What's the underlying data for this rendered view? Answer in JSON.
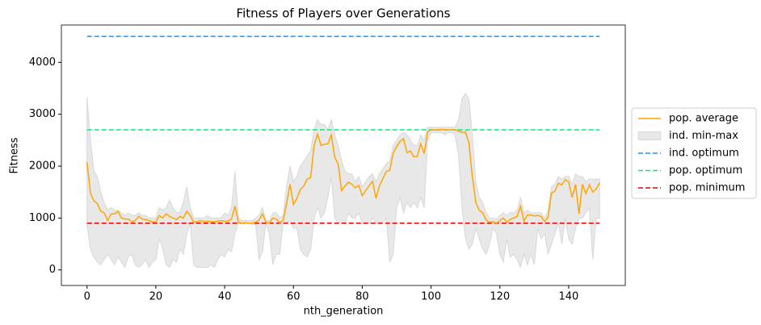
{
  "chart_data": {
    "type": "line",
    "title": "Fitness of Players over Generations",
    "xlabel": "nth_generation",
    "ylabel": "Fitness",
    "xlim": [
      -7.45,
      156.45
    ],
    "ylim": [
      -300,
      4720
    ],
    "xticks": [
      0,
      20,
      40,
      60,
      80,
      100,
      120,
      140
    ],
    "yticks": [
      0,
      1000,
      2000,
      3000,
      4000
    ],
    "x": [
      0,
      1,
      2,
      3,
      4,
      5,
      6,
      7,
      8,
      9,
      10,
      11,
      12,
      13,
      14,
      15,
      16,
      17,
      18,
      19,
      20,
      21,
      22,
      23,
      24,
      25,
      26,
      27,
      28,
      29,
      30,
      31,
      32,
      33,
      34,
      35,
      36,
      37,
      38,
      39,
      40,
      41,
      42,
      43,
      44,
      45,
      46,
      47,
      48,
      49,
      50,
      51,
      52,
      53,
      54,
      55,
      56,
      57,
      58,
      59,
      60,
      61,
      62,
      63,
      64,
      65,
      66,
      67,
      68,
      69,
      70,
      71,
      72,
      73,
      74,
      75,
      76,
      77,
      78,
      79,
      80,
      81,
      82,
      83,
      84,
      85,
      86,
      87,
      88,
      89,
      90,
      91,
      92,
      93,
      94,
      95,
      96,
      97,
      98,
      99,
      100,
      101,
      102,
      103,
      104,
      105,
      106,
      107,
      108,
      109,
      110,
      111,
      112,
      113,
      114,
      115,
      116,
      117,
      118,
      119,
      120,
      121,
      122,
      123,
      124,
      125,
      126,
      127,
      128,
      129,
      130,
      131,
      132,
      133,
      134,
      135,
      136,
      137,
      138,
      139,
      140,
      141,
      142,
      143,
      144,
      145,
      146,
      147,
      148,
      149
    ],
    "series": [
      {
        "name": "pop. average",
        "color": "#ffa500",
        "values": [
          2080,
          1480,
          1330,
          1280,
          1130,
          1100,
          950,
          1080,
          1080,
          1130,
          1000,
          980,
          980,
          930,
          950,
          1030,
          980,
          970,
          950,
          930,
          920,
          1050,
          1000,
          1080,
          1030,
          1000,
          970,
          1030,
          1000,
          1130,
          1050,
          920,
          930,
          950,
          930,
          940,
          930,
          930,
          940,
          950,
          940,
          940,
          980,
          1230,
          920,
          900,
          910,
          900,
          900,
          920,
          960,
          1080,
          920,
          900,
          1000,
          980,
          910,
          950,
          1280,
          1650,
          1260,
          1380,
          1550,
          1620,
          1750,
          1780,
          2400,
          2620,
          2400,
          2420,
          2430,
          2600,
          2170,
          2040,
          1530,
          1620,
          1690,
          1650,
          1580,
          1630,
          1430,
          1530,
          1620,
          1710,
          1380,
          1620,
          1760,
          1900,
          1920,
          2250,
          2380,
          2480,
          2530,
          2260,
          2290,
          2180,
          2190,
          2430,
          2240,
          2660,
          2700,
          2700,
          2700,
          2710,
          2700,
          2700,
          2700,
          2700,
          2680,
          2650,
          2660,
          2450,
          1790,
          1300,
          1150,
          1100,
          960,
          920,
          930,
          900,
          950,
          1000,
          920,
          970,
          1000,
          1030,
          1230,
          940,
          1060,
          1060,
          1040,
          1050,
          1030,
          930,
          1020,
          1480,
          1520,
          1670,
          1640,
          1740,
          1700,
          1400,
          1650,
          1080,
          1650,
          1470,
          1640,
          1500,
          1560,
          1680
        ]
      }
    ],
    "band": {
      "name": "ind. min-max",
      "color": "#e8e8e8",
      "lower": [
        850,
        400,
        250,
        150,
        100,
        200,
        300,
        200,
        100,
        250,
        150,
        50,
        250,
        300,
        100,
        50,
        100,
        200,
        50,
        150,
        200,
        600,
        400,
        100,
        50,
        200,
        150,
        400,
        300,
        700,
        900,
        100,
        50,
        50,
        50,
        50,
        100,
        50,
        200,
        300,
        250,
        400,
        350,
        700,
        900,
        900,
        900,
        900,
        880,
        880,
        200,
        350,
        900,
        700,
        100,
        300,
        300,
        900,
        900,
        950,
        800,
        800,
        400,
        300,
        250,
        400,
        1000,
        1200,
        1000,
        1100,
        1400,
        1800,
        1000,
        900,
        900,
        900,
        1100,
        1000,
        1000,
        1100,
        900,
        900,
        900,
        1000,
        900,
        900,
        900,
        1000,
        150,
        300,
        1200,
        1400,
        1100,
        1300,
        1200,
        1300,
        1200,
        1400,
        1200,
        2500,
        2650,
        2650,
        2650,
        2650,
        2600,
        2650,
        2650,
        2600,
        2200,
        1200,
        600,
        400,
        500,
        800,
        600,
        400,
        300,
        500,
        800,
        700,
        300,
        150,
        600,
        250,
        300,
        200,
        50,
        300,
        100,
        300,
        100,
        800,
        600,
        700,
        300,
        500,
        700,
        900,
        500,
        1000,
        600,
        500,
        800,
        1000,
        1000,
        1100,
        1200,
        200,
        1000,
        1000
      ],
      "upper": [
        3330,
        2500,
        1900,
        1800,
        1500,
        1300,
        1150,
        1200,
        1150,
        1150,
        1100,
        1050,
        1100,
        1050,
        1050,
        1100,
        1050,
        1050,
        1000,
        1000,
        1000,
        1200,
        1150,
        1200,
        1350,
        1200,
        1100,
        1100,
        1300,
        1600,
        1200,
        1000,
        1000,
        1000,
        1000,
        1050,
        1000,
        1000,
        1000,
        1000,
        1100,
        1050,
        1200,
        1900,
        1000,
        950,
        950,
        950,
        950,
        1000,
        1050,
        1200,
        950,
        950,
        1100,
        1100,
        1000,
        1050,
        1600,
        2000,
        1700,
        1800,
        2000,
        2100,
        2200,
        2300,
        2700,
        2900,
        2800,
        2800,
        2700,
        2900,
        2600,
        2400,
        2100,
        1900,
        1850,
        1850,
        1700,
        1800,
        1600,
        1700,
        1800,
        1850,
        1700,
        1850,
        1950,
        2050,
        2100,
        2400,
        2500,
        2600,
        2650,
        2600,
        2500,
        2400,
        2400,
        2600,
        2500,
        2750,
        2750,
        2750,
        2750,
        2750,
        2750,
        2750,
        2750,
        2750,
        2900,
        3300,
        3400,
        3300,
        2600,
        1700,
        1400,
        1300,
        1100,
        1000,
        1000,
        980,
        1050,
        1100,
        1050,
        1100,
        1100,
        1150,
        1400,
        1100,
        1150,
        1100,
        1100,
        1100,
        1100,
        1000,
        1150,
        1600,
        1650,
        1800,
        1750,
        1800,
        1800,
        1650,
        1850,
        1800,
        1800,
        1700,
        1750,
        1750,
        1750,
        1750
      ]
    },
    "reference_lines": [
      {
        "name": "ind. optimum",
        "color": "#1e90ff",
        "value": 4500
      },
      {
        "name": "pop. optimum",
        "color": "#00ee76",
        "value": 2700
      },
      {
        "name": "pop. minimum",
        "color": "#e00000",
        "value": 900
      }
    ]
  }
}
